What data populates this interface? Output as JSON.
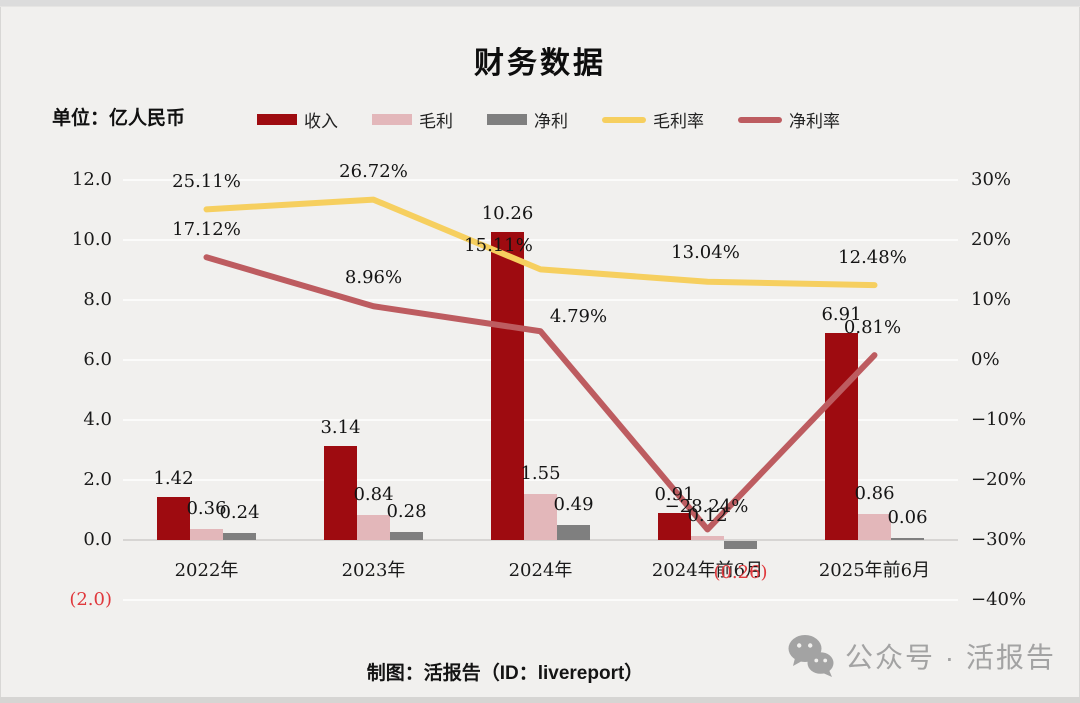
{
  "title": "财务数据",
  "unit_label": "单位：亿人民币",
  "legend": [
    {
      "label": "收入",
      "type": "bar",
      "color": "#9e0b10"
    },
    {
      "label": "毛利",
      "type": "bar",
      "color": "#e3b7ba"
    },
    {
      "label": "净利",
      "type": "bar",
      "color": "#7f7f7f"
    },
    {
      "label": "毛利率",
      "type": "line",
      "color": "#f6cf5f"
    },
    {
      "label": "净利率",
      "type": "line",
      "color": "#bd5c60"
    }
  ],
  "footer": {
    "credit": "制图：活报告（ID：livereport）",
    "wechat_label": "公众号 · 活报告",
    "wechat_icon": "wechat-icon",
    "wechat_color": "#a3a3a3"
  },
  "colors": {
    "background": "#f1f0ee",
    "revenue": "#9e0b10",
    "gross_profit": "#e3b7ba",
    "net_profit": "#7f7f7f",
    "gross_margin_line": "#f6cf5f",
    "net_margin_line": "#bd5c60",
    "negative_label": "#e0393d"
  },
  "chart_data": {
    "type": "bar",
    "subtype": "combo bar + line, dual axis",
    "title": "财务数据",
    "categories": [
      "2022年",
      "2023年",
      "2024年",
      "2024年前6月",
      "2025年前6月"
    ],
    "bar_series": [
      {
        "name": "收入",
        "color": "#9e0b10",
        "axis": "left",
        "values": [
          1.42,
          3.14,
          10.26,
          0.91,
          6.91
        ],
        "labels": [
          "1.42",
          "3.14",
          "10.26",
          "0.91",
          "6.91"
        ]
      },
      {
        "name": "毛利",
        "color": "#e3b7ba",
        "axis": "left",
        "values": [
          0.36,
          0.84,
          1.55,
          0.12,
          0.86
        ],
        "labels": [
          "0.36",
          "0.84",
          "1.55",
          "0.12",
          "0.86"
        ]
      },
      {
        "name": "净利",
        "color": "#7f7f7f",
        "axis": "left",
        "values": [
          0.24,
          0.28,
          0.49,
          -0.26,
          0.06
        ],
        "labels": [
          "0.24",
          "0.28",
          "0.49",
          "(0.26)",
          "0.06"
        ]
      }
    ],
    "line_series": [
      {
        "name": "毛利率",
        "color": "#f6cf5f",
        "axis": "right",
        "values": [
          25.11,
          26.72,
          15.11,
          13.04,
          12.48
        ],
        "labels": [
          "25.11%",
          "26.72%",
          "15.11%",
          "13.04%",
          "12.48%"
        ]
      },
      {
        "name": "净利率",
        "color": "#bd5c60",
        "axis": "right",
        "values": [
          17.12,
          8.96,
          4.79,
          -28.24,
          0.81
        ],
        "labels": [
          "17.12%",
          "8.96%",
          "4.79%",
          "−28.24%",
          "0.81%"
        ]
      }
    ],
    "left_axis": {
      "label": "亿人民币",
      "ticks": [
        "12.0",
        "10.0",
        "8.0",
        "6.0",
        "4.0",
        "2.0",
        "0.0",
        "(2.0)"
      ],
      "values": [
        12,
        10,
        8,
        6,
        4,
        2,
        0,
        -2
      ],
      "ylim": [
        -2,
        12
      ]
    },
    "right_axis": {
      "label": "%",
      "ticks": [
        "30%",
        "20%",
        "10%",
        "0%",
        "−10%",
        "−20%",
        "−30%",
        "−40%"
      ],
      "values": [
        30,
        20,
        10,
        0,
        -10,
        -20,
        -30,
        -40
      ],
      "ylim": [
        -40,
        30
      ]
    },
    "grid": true,
    "legend_position": "top"
  }
}
